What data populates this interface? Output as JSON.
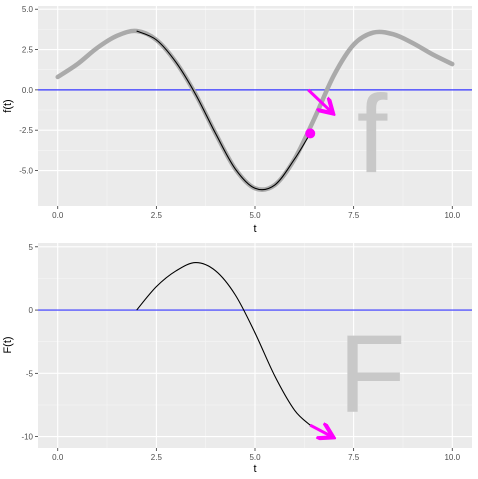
{
  "chart_data": [
    {
      "type": "line",
      "xlabel": "t",
      "ylabel": "f(t)",
      "xlim": [
        -0.5,
        10.5
      ],
      "ylim": [
        -7.2,
        5.2
      ],
      "x_ticks": [
        0.0,
        2.5,
        5.0,
        7.5,
        10.0
      ],
      "x_tick_labels": [
        "0.0",
        "2.5",
        "5.0",
        "7.5",
        "10.0"
      ],
      "y_ticks": [
        5.0,
        2.5,
        0.0,
        -2.5,
        -5.0
      ],
      "y_tick_labels": [
        "5.0",
        "2.5",
        "0.0",
        "-2.5",
        "-5.0"
      ],
      "grid": true,
      "reference_line_y": 0,
      "series": [
        {
          "role": "full-curve",
          "color": "#aaaaaa",
          "x": [
            0,
            0.5,
            1,
            1.5,
            2,
            2.5,
            3,
            3.5,
            4,
            4.5,
            5,
            5.5,
            6,
            6.5,
            7,
            7.5,
            8,
            8.5,
            9,
            9.5,
            10
          ],
          "y": [
            0.8,
            1.6,
            2.6,
            3.35,
            3.65,
            3.1,
            1.7,
            -0.3,
            -2.7,
            -4.9,
            -6.1,
            -5.9,
            -4.3,
            -1.8,
            0.9,
            2.8,
            3.55,
            3.45,
            2.9,
            2.2,
            1.6
          ]
        },
        {
          "role": "integrated-segment",
          "color": "#000000",
          "x": [
            2,
            2.5,
            3,
            3.5,
            4,
            4.5,
            5,
            5.5,
            6,
            6.4
          ],
          "y": [
            3.65,
            3.1,
            1.7,
            -0.3,
            -2.7,
            -4.9,
            -6.1,
            -5.9,
            -4.3,
            -2.7
          ]
        }
      ],
      "marker": {
        "x": 6.4,
        "y": -2.7,
        "color": "#ff00ff"
      },
      "arrow": {
        "x0": 6.35,
        "y0": 0.0,
        "x1": 6.95,
        "y1": -1.4,
        "color": "#ff00ff"
      },
      "watermark": "f"
    },
    {
      "type": "line",
      "xlabel": "t",
      "ylabel": "F(t)",
      "xlim": [
        -0.5,
        10.5
      ],
      "ylim": [
        -10.9,
        5.3
      ],
      "x_ticks": [
        0.0,
        2.5,
        5.0,
        7.5,
        10.0
      ],
      "x_tick_labels": [
        "0.0",
        "2.5",
        "5.0",
        "7.5",
        "10.0"
      ],
      "y_ticks": [
        5,
        0,
        -5,
        -10
      ],
      "y_tick_labels": [
        "5",
        "0",
        "-5",
        "-10"
      ],
      "grid": true,
      "reference_line_y": 0,
      "series": [
        {
          "role": "accumulated-integral",
          "color": "#000000",
          "x": [
            2,
            2.5,
            3,
            3.5,
            4,
            4.5,
            5,
            5.5,
            6,
            6.4
          ],
          "y": [
            0.0,
            1.85,
            3.1,
            3.75,
            3.1,
            1.2,
            -1.8,
            -5.2,
            -7.9,
            -9.1
          ]
        }
      ],
      "arrow": {
        "x0": 6.4,
        "y0": -9.1,
        "x1": 6.95,
        "y1": -10.0,
        "color": "#ff00ff"
      },
      "watermark": "F"
    }
  ]
}
